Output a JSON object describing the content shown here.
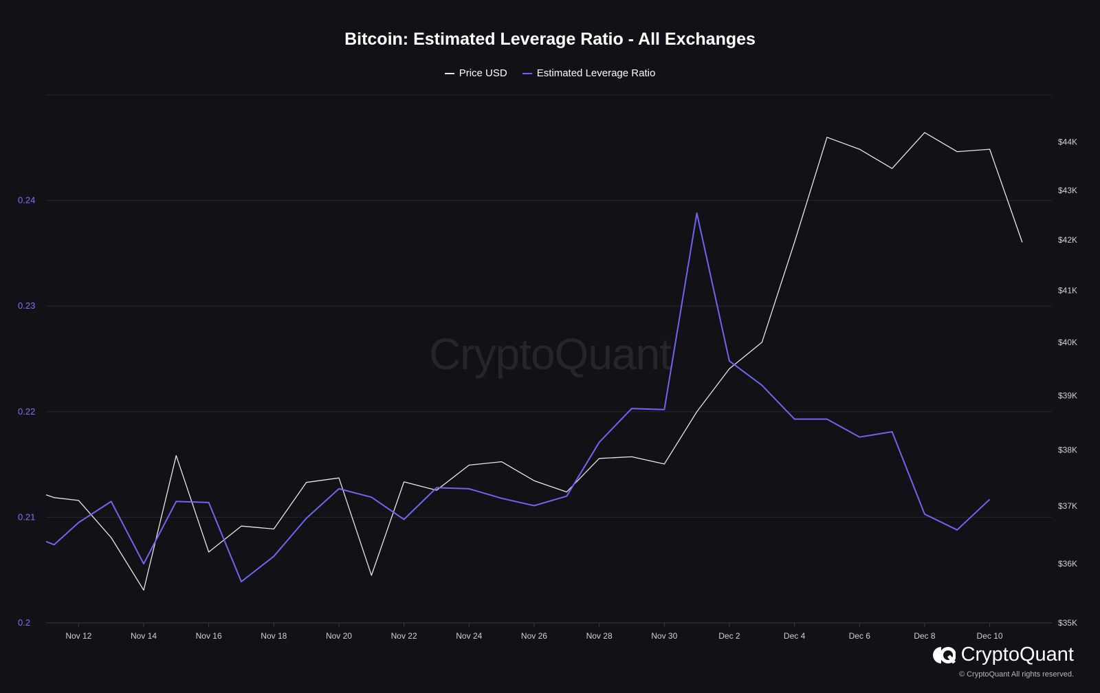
{
  "title": "Bitcoin: Estimated Leverage Ratio - All Exchanges",
  "watermark": "CryptoQuant",
  "brand": {
    "name": "CryptoQuant",
    "logo_icon": "cryptoquant-logo-icon",
    "copyright": "© CryptoQuant All rights reserved."
  },
  "colors": {
    "background": "#111116",
    "price": "#e8e8ec",
    "leverage": "#6f66f0",
    "grid": "#26262d",
    "left_axis_text": "#7b73ff",
    "right_axis_text": "#cfcfd6",
    "x_axis_text": "#cfcfd6"
  },
  "chart_data": {
    "type": "line",
    "title": "Bitcoin: Estimated Leverage Ratio - All Exchanges",
    "legend": [
      "Price USD",
      "Estimated Leverage Ratio"
    ],
    "legend_position": "top-center",
    "grid": true,
    "x_tick_labels": [
      "Nov 12",
      "Nov 14",
      "Nov 16",
      "Nov 18",
      "Nov 20",
      "Nov 22",
      "Nov 24",
      "Nov 26",
      "Nov 28",
      "Nov 30",
      "Dec 2",
      "Dec 4",
      "Dec 6",
      "Dec 8",
      "Dec 10"
    ],
    "y_left": {
      "ticks": [
        0.2,
        0.21,
        0.22,
        0.23,
        0.24
      ],
      "tick_labels": [
        "0.2",
        "0.21",
        "0.22",
        "0.23",
        "0.24"
      ],
      "range": [
        0.2,
        0.25
      ]
    },
    "y_right": {
      "ticks": [
        35000,
        36000,
        37000,
        38000,
        39000,
        40000,
        41000,
        42000,
        43000,
        44000
      ],
      "tick_labels": [
        "$35K",
        "$36K",
        "$37K",
        "$38K",
        "$39K",
        "$40K",
        "$41K",
        "$42K",
        "$43K",
        "$44K"
      ],
      "range": [
        35000,
        45000
      ],
      "scale": "log"
    },
    "series": [
      {
        "name": "Price USD",
        "axis": "right",
        "color": "#e8e8ec",
        "x": [
          "Nov 11",
          "Nov 11",
          "Nov 12",
          "Nov 13",
          "Nov 14",
          "Nov 15",
          "Nov 16",
          "Nov 17",
          "Nov 18",
          "Nov 19",
          "Nov 20",
          "Nov 21",
          "Nov 22",
          "Nov 23",
          "Nov 24",
          "Nov 25",
          "Nov 26",
          "Nov 27",
          "Nov 28",
          "Nov 29",
          "Nov 30",
          "Dec 1",
          "Dec 2",
          "Dec 3",
          "Dec 4",
          "Dec 5",
          "Dec 6",
          "Dec 7",
          "Dec 8",
          "Dec 9",
          "Dec 10",
          "Dec 11"
        ],
        "values": [
          37200,
          37150,
          37100,
          36450,
          35550,
          37900,
          36200,
          36650,
          36600,
          37420,
          37500,
          35800,
          37430,
          37280,
          37730,
          37790,
          37450,
          37250,
          37850,
          37880,
          37750,
          38700,
          39500,
          40000,
          41950,
          44100,
          43850,
          43450,
          44200,
          43800,
          43850,
          41950
        ]
      },
      {
        "name": "Estimated Leverage Ratio",
        "axis": "left",
        "color": "#6f66f0",
        "x": [
          "Nov 11",
          "Nov 11",
          "Nov 12",
          "Nov 13",
          "Nov 14",
          "Nov 15",
          "Nov 16",
          "Nov 17",
          "Nov 18",
          "Nov 19",
          "Nov 20",
          "Nov 21",
          "Nov 22",
          "Nov 23",
          "Nov 24",
          "Nov 25",
          "Nov 26",
          "Nov 27",
          "Nov 28",
          "Nov 29",
          "Nov 30",
          "Dec 1",
          "Dec 2",
          "Dec 3",
          "Dec 4",
          "Dec 5",
          "Dec 6",
          "Dec 7",
          "Dec 8",
          "Dec 9",
          "Dec 10"
        ],
        "values": [
          0.2077,
          0.2074,
          0.2095,
          0.2115,
          0.2056,
          0.2115,
          0.2114,
          0.2039,
          0.2063,
          0.2099,
          0.2127,
          0.2119,
          0.2098,
          0.2128,
          0.2127,
          0.2118,
          0.2111,
          0.212,
          0.2171,
          0.2203,
          0.2202,
          0.2388,
          0.2248,
          0.2225,
          0.2193,
          0.2193,
          0.2176,
          0.2181,
          0.2103,
          0.2088,
          0.2117
        ]
      }
    ]
  }
}
